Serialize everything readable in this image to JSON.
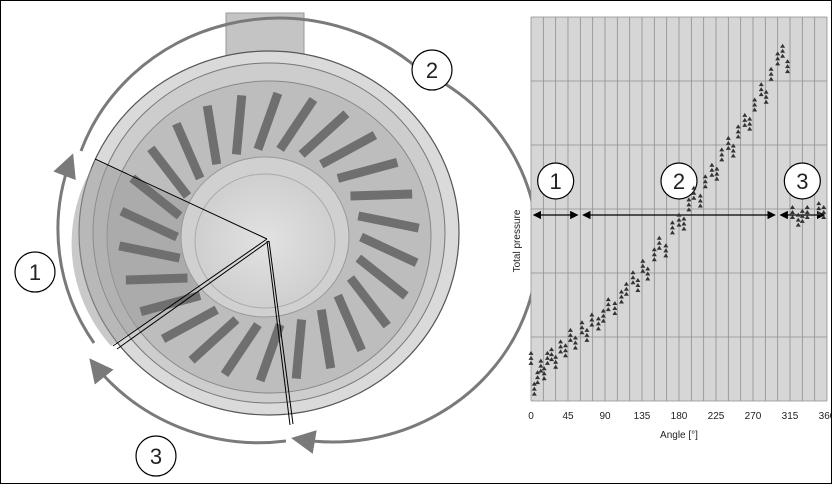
{
  "colors": {
    "plot_bg": "#d6d6d6",
    "gridline": "#8e8e8e",
    "marker": "#333333",
    "arrow_gray": "#7a7a7a",
    "housing": "#c9c9c9",
    "blade": "#6f6f6f"
  },
  "left_figure": {
    "description": "pump-impeller",
    "region_labels": [
      "1",
      "2",
      "3"
    ]
  },
  "chart_data": {
    "type": "scatter",
    "xlabel": "Angle [°]",
    "ylabel": "Total pressure",
    "xlim": [
      0,
      360
    ],
    "x_ticks": [
      "0",
      "45",
      "90",
      "135",
      "180",
      "225",
      "270",
      "315",
      "360"
    ],
    "y_ticks": [],
    "grid": true,
    "regions": [
      {
        "label": "1",
        "from": 0,
        "to": 60
      },
      {
        "label": "2",
        "from": 60,
        "to": 300
      },
      {
        "label": "3",
        "from": 300,
        "to": 360
      }
    ],
    "series": [
      {
        "x": [
          0,
          4,
          8,
          12,
          16,
          20,
          25,
          30,
          36,
          42,
          48,
          54,
          62,
          68,
          74,
          82,
          88,
          94,
          102,
          110,
          116,
          124,
          130,
          136,
          142,
          150,
          156,
          164,
          172,
          180,
          186,
          192,
          198,
          206,
          212,
          220,
          226,
          232,
          240,
          246,
          252,
          260,
          266,
          272,
          280,
          286,
          292,
          300,
          306,
          312,
          318,
          325,
          330,
          336,
          350,
          356
        ],
        "y": [
          0.12,
          0.04,
          0.07,
          0.1,
          0.08,
          0.12,
          0.13,
          0.11,
          0.15,
          0.14,
          0.18,
          0.16,
          0.2,
          0.18,
          0.22,
          0.21,
          0.23,
          0.26,
          0.25,
          0.28,
          0.3,
          0.33,
          0.31,
          0.36,
          0.34,
          0.39,
          0.42,
          0.4,
          0.46,
          0.48,
          0.47,
          0.52,
          0.55,
          0.53,
          0.58,
          0.61,
          0.6,
          0.65,
          0.68,
          0.66,
          0.71,
          0.74,
          0.73,
          0.78,
          0.82,
          0.8,
          0.86,
          0.9,
          0.92,
          0.88,
          0.5,
          0.48,
          0.49,
          0.5,
          0.51,
          0.5
        ]
      }
    ]
  }
}
